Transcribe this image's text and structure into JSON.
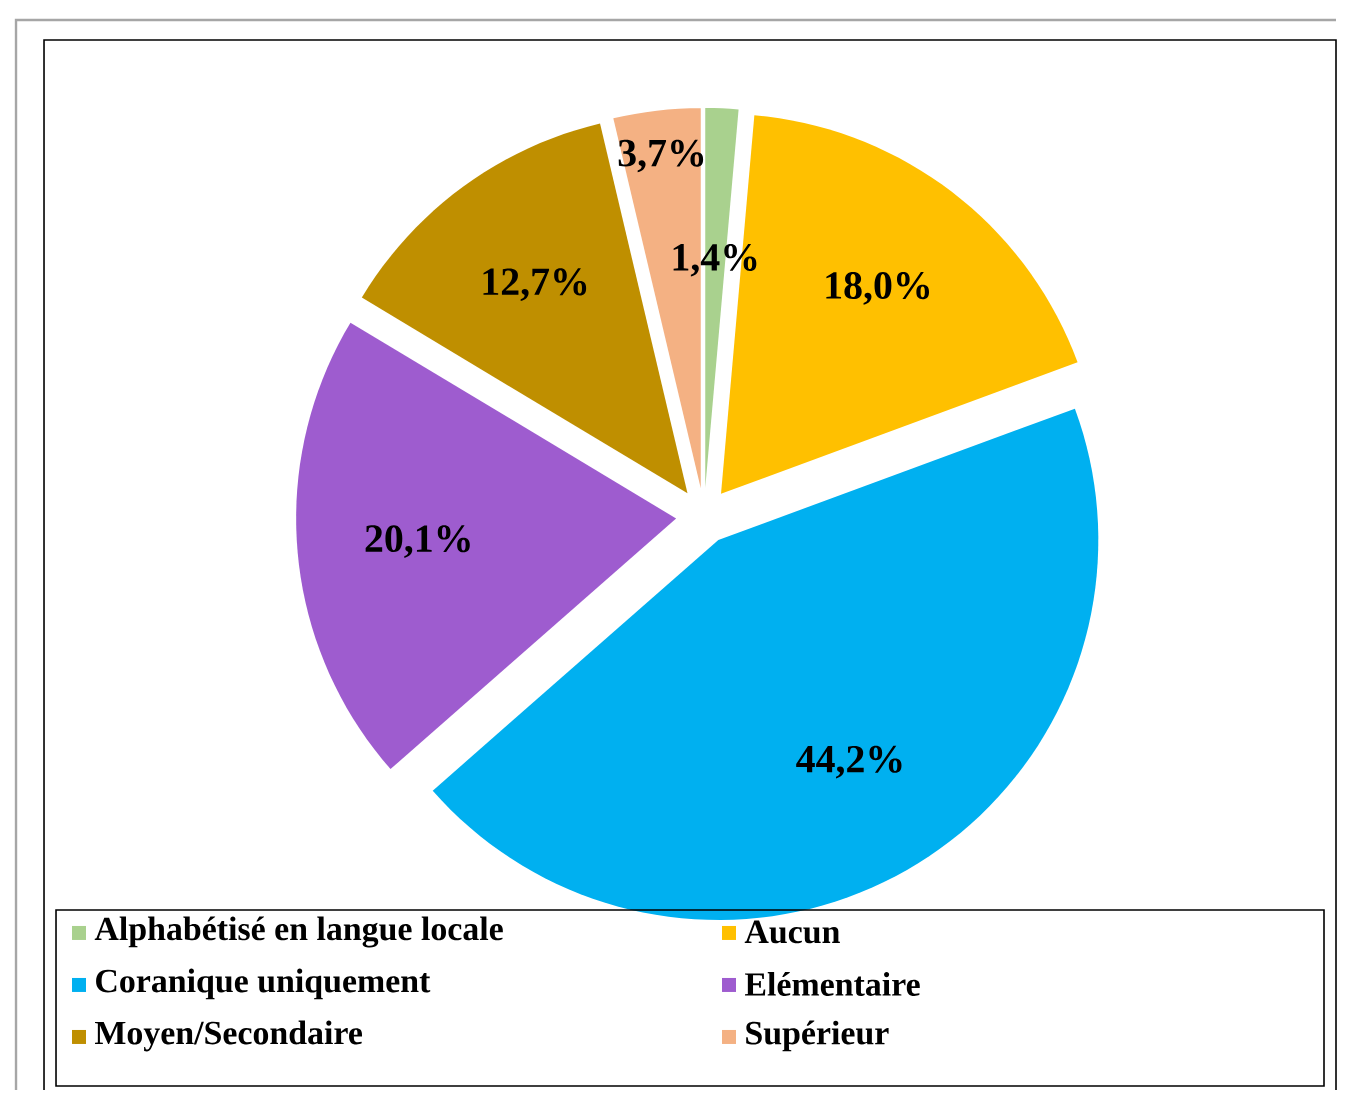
{
  "chart_data": {
    "type": "pie",
    "categories": [
      "Alphabétisé en langue locale",
      "Aucun",
      "Coranique uniquement",
      "Elémentaire",
      "Moyen/Secondaire",
      "Supérieur"
    ],
    "values": [
      1.4,
      18.0,
      44.2,
      20.1,
      12.7,
      3.7
    ],
    "value_labels": [
      "1,4%",
      "18,0%",
      "44,2%",
      "20,1%",
      "12,7%",
      "3,7%"
    ],
    "colors": [
      "#a9d18e",
      "#ffc000",
      "#00b0f0",
      "#9e5ccf",
      "#bf8f00",
      "#f4b183"
    ],
    "legend": "bottom"
  }
}
